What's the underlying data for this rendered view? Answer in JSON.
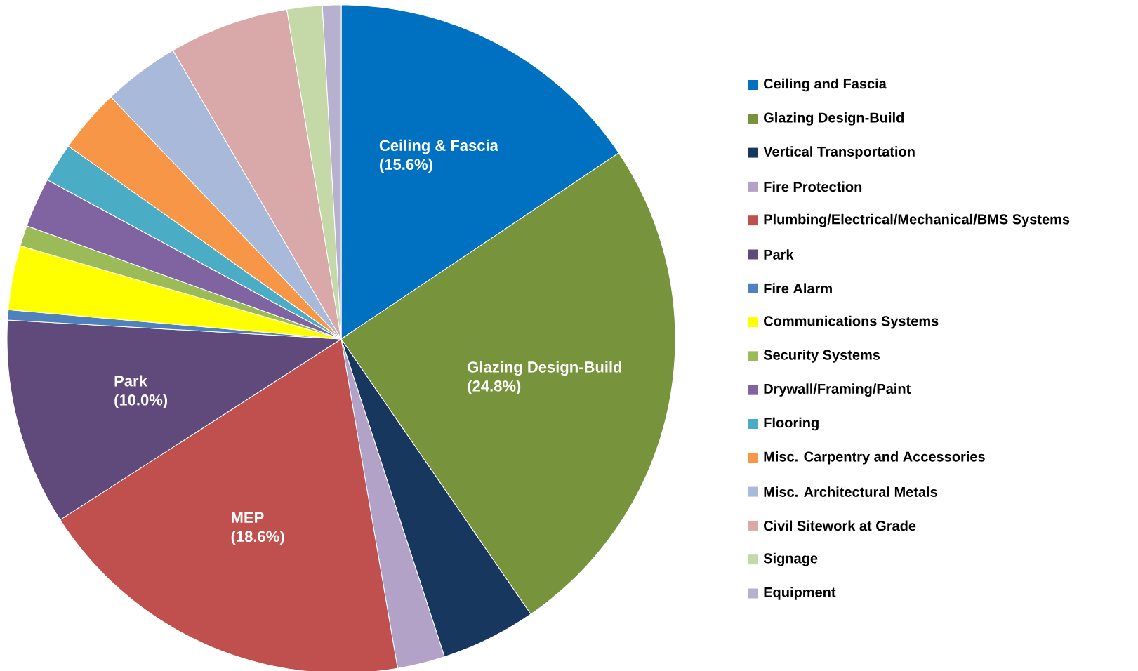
{
  "chart_data": {
    "type": "pie",
    "categories": [
      "Ceiling and Fascia",
      "Glazing Design-Build",
      "Vertical Transportation",
      "Fire Protection",
      "Plumbing/Electrical/Mechanical/BMS Systems",
      "Park",
      "Fire Alarm",
      "Communications Systems",
      "Security Systems",
      "Drywall/Framing/Paint",
      "Flooring",
      "Misc. Carpentry and Accessories",
      "Misc. Architectural Metals",
      "Civil Sitework at Grade",
      "Signage",
      "Equipment"
    ],
    "values": [
      15.6,
      24.8,
      4.6,
      2.3,
      18.6,
      10.0,
      0.5,
      3.1,
      1.0,
      2.4,
      1.9,
      3.1,
      3.7,
      5.8,
      1.7,
      0.9
    ],
    "colors": [
      "#0070c0",
      "#77933c",
      "#17375e",
      "#b3a2c7",
      "#c0504d",
      "#604a7b",
      "#4f81bd",
      "#ffff00",
      "#9bbb59",
      "#8064a2",
      "#4bacc6",
      "#f79646",
      "#a9b9d9",
      "#d9a9a9",
      "#c4d8a8",
      "#b8b0cf"
    ],
    "value_labels": [
      "(15.6%)",
      "(24.8%)",
      null,
      null,
      "(18.6%)",
      "(10.0%)",
      null,
      null,
      null,
      null,
      null,
      null,
      null,
      null,
      null,
      null
    ],
    "annotations": [
      "Ceiling & Fascia",
      "Glazing Design-Build",
      "MEP",
      "Park"
    ],
    "legend": "right"
  }
}
